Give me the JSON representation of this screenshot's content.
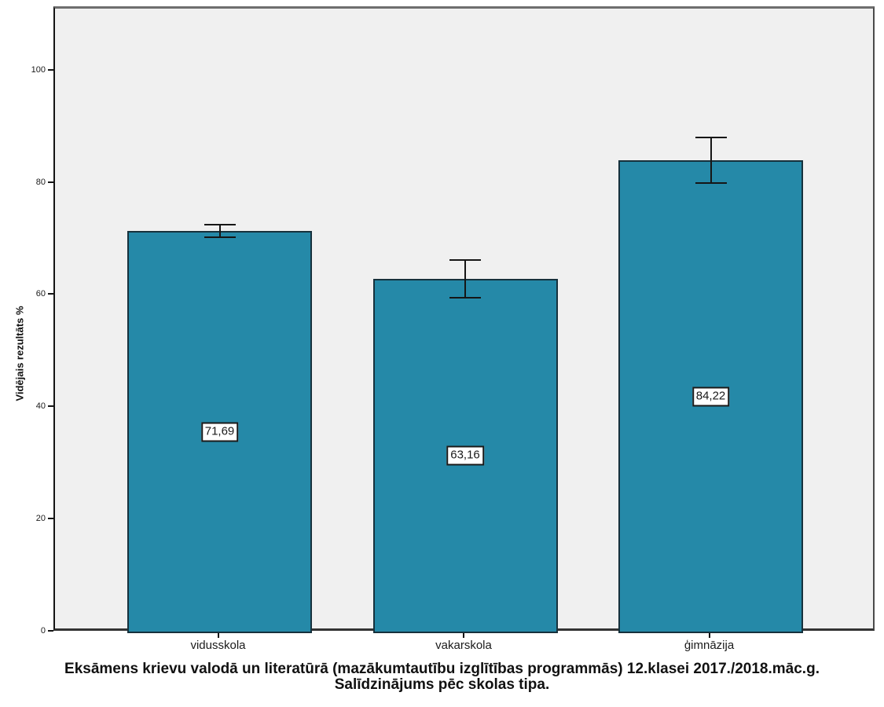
{
  "page": {
    "background": "#ffffff"
  },
  "chart_data": {
    "type": "bar",
    "title_line1": "Eksāmens krievu valodā un literatūrā (mazākumtautību izglītības programmās) 12.klasei 2017./2018.māc.g.",
    "title_line2": "Salīdzinājums pēc skolas tipa.",
    "ylabel": "Vidējais rezultāts %",
    "xlabel": "",
    "categories": [
      "vidusskola",
      "vakarskola",
      "ģimnāzija"
    ],
    "values": [
      71.69,
      63.16,
      84.22
    ],
    "value_labels": [
      "71,69",
      "63,16",
      "84,22"
    ],
    "error_upper": [
      72.8,
      66.5,
      88.3
    ],
    "error_lower": [
      70.5,
      59.8,
      80.2
    ],
    "yticks": [
      0,
      20,
      40,
      60,
      80,
      100
    ],
    "ylim": [
      0,
      111.3
    ],
    "grid": false,
    "legend": false,
    "bar_color": "#2589A8",
    "bar_border_color": "#16313C",
    "plot_bg": "#F0F0F0",
    "error_color": "#161616"
  }
}
